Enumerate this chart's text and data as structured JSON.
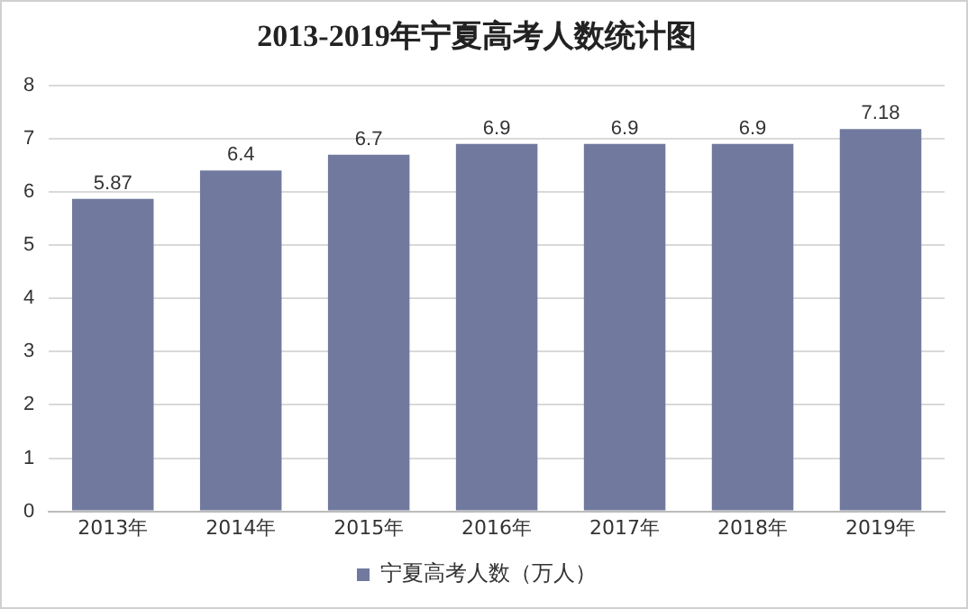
{
  "chart_data": {
    "type": "bar",
    "title": "2013-2019年宁夏高考人数统计图",
    "categories": [
      "2013年",
      "2014年",
      "2015年",
      "2016年",
      "2017年",
      "2018年",
      "2019年"
    ],
    "series": [
      {
        "name": "宁夏高考人数（万人）",
        "color": "#717a9e",
        "values": [
          5.87,
          6.4,
          6.7,
          6.9,
          6.9,
          6.9,
          7.18
        ]
      }
    ],
    "ylim": [
      0,
      8
    ],
    "yticks": [
      0,
      1,
      2,
      3,
      4,
      5,
      6,
      7,
      8
    ],
    "grid": "y",
    "legend": "bottom",
    "data_labels": true
  }
}
